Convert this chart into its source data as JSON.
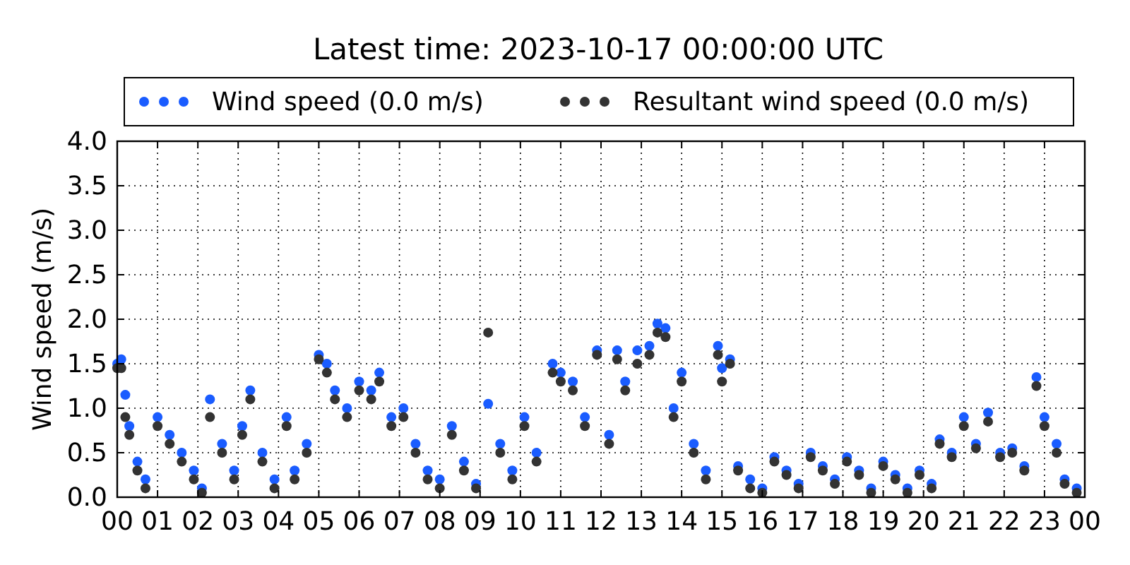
{
  "chart_data": {
    "type": "scatter",
    "title": "Latest time: 2023-10-17 00:00:00 UTC",
    "ylabel": "Wind speed (m/s)",
    "xlim": [
      0,
      24
    ],
    "xticks": [
      {
        "value": 0,
        "label": "00"
      },
      {
        "value": 1,
        "label": "01"
      },
      {
        "value": 2,
        "label": "02"
      },
      {
        "value": 3,
        "label": "03"
      },
      {
        "value": 4,
        "label": "04"
      },
      {
        "value": 5,
        "label": "05"
      },
      {
        "value": 6,
        "label": "06"
      },
      {
        "value": 7,
        "label": "07"
      },
      {
        "value": 8,
        "label": "08"
      },
      {
        "value": 9,
        "label": "09"
      },
      {
        "value": 10,
        "label": "10"
      },
      {
        "value": 11,
        "label": "11"
      },
      {
        "value": 12,
        "label": "12"
      },
      {
        "value": 13,
        "label": "13"
      },
      {
        "value": 14,
        "label": "14"
      },
      {
        "value": 15,
        "label": "15"
      },
      {
        "value": 16,
        "label": "16"
      },
      {
        "value": 17,
        "label": "17"
      },
      {
        "value": 18,
        "label": "18"
      },
      {
        "value": 19,
        "label": "19"
      },
      {
        "value": 20,
        "label": "20"
      },
      {
        "value": 21,
        "label": "21"
      },
      {
        "value": 22,
        "label": "22"
      },
      {
        "value": 23,
        "label": "23"
      },
      {
        "value": 24,
        "label": "00"
      }
    ],
    "ylim": [
      0,
      4
    ],
    "yticks": [
      {
        "value": 0,
        "label": "0.0"
      },
      {
        "value": 0.5,
        "label": "0.5"
      },
      {
        "value": 1,
        "label": "1.0"
      },
      {
        "value": 1.5,
        "label": "1.5"
      },
      {
        "value": 2,
        "label": "2.0"
      },
      {
        "value": 2.5,
        "label": "2.5"
      },
      {
        "value": 3,
        "label": "3.0"
      },
      {
        "value": 3.5,
        "label": "3.5"
      },
      {
        "value": 4,
        "label": "4.0"
      }
    ],
    "grid": true,
    "legend": "top",
    "marker": "circle",
    "series": [
      {
        "name": "Wind speed (0.0 m/s)",
        "color": "#1a5cff",
        "x": [
          0.0,
          0.1,
          0.2,
          0.3,
          0.5,
          0.7,
          1.0,
          1.3,
          1.6,
          1.9,
          2.1,
          2.3,
          2.6,
          2.9,
          3.1,
          3.3,
          3.6,
          3.9,
          4.2,
          4.4,
          4.7,
          5.0,
          5.2,
          5.4,
          5.7,
          6.0,
          6.3,
          6.5,
          6.8,
          7.1,
          7.4,
          7.7,
          8.0,
          8.3,
          8.6,
          8.9,
          9.2,
          9.5,
          9.8,
          10.1,
          10.4,
          10.8,
          11.0,
          11.3,
          11.6,
          11.9,
          12.2,
          12.4,
          12.6,
          12.9,
          13.2,
          13.4,
          13.6,
          13.8,
          14.0,
          14.3,
          14.6,
          14.9,
          15.0,
          15.2,
          15.4,
          15.7,
          16.0,
          16.3,
          16.6,
          16.9,
          17.2,
          17.5,
          17.8,
          18.1,
          18.4,
          18.7,
          19.0,
          19.3,
          19.6,
          19.9,
          20.2,
          20.4,
          20.7,
          21.0,
          21.3,
          21.6,
          21.9,
          22.2,
          22.5,
          22.8,
          23.0,
          23.3,
          23.5,
          23.8
        ],
        "values": [
          1.5,
          1.55,
          1.15,
          0.8,
          0.4,
          0.2,
          0.9,
          0.7,
          0.5,
          0.3,
          0.1,
          1.1,
          0.6,
          0.3,
          0.8,
          1.2,
          0.5,
          0.2,
          0.9,
          0.3,
          0.6,
          1.6,
          1.5,
          1.2,
          1.0,
          1.3,
          1.2,
          1.4,
          0.9,
          1.0,
          0.6,
          0.3,
          0.2,
          0.8,
          0.4,
          0.15,
          1.05,
          0.6,
          0.3,
          0.9,
          0.5,
          1.5,
          1.4,
          1.3,
          0.9,
          1.65,
          0.7,
          1.65,
          1.3,
          1.65,
          1.7,
          1.95,
          1.9,
          1.0,
          1.4,
          0.6,
          0.3,
          1.7,
          1.45,
          1.55,
          0.35,
          0.2,
          0.1,
          0.45,
          0.3,
          0.15,
          0.5,
          0.35,
          0.2,
          0.45,
          0.3,
          0.1,
          0.4,
          0.25,
          0.1,
          0.3,
          0.15,
          0.65,
          0.5,
          0.9,
          0.6,
          0.95,
          0.5,
          0.55,
          0.35,
          1.35,
          0.9,
          0.6,
          0.2,
          0.1
        ]
      },
      {
        "name": "Resultant wind speed (0.0 m/s)",
        "color": "#333333",
        "x": [
          0.0,
          0.1,
          0.2,
          0.3,
          0.5,
          0.7,
          1.0,
          1.3,
          1.6,
          1.9,
          2.1,
          2.3,
          2.6,
          2.9,
          3.1,
          3.3,
          3.6,
          3.9,
          4.2,
          4.4,
          4.7,
          5.0,
          5.2,
          5.4,
          5.7,
          6.0,
          6.3,
          6.5,
          6.8,
          7.1,
          7.4,
          7.7,
          8.0,
          8.3,
          8.6,
          8.9,
          9.2,
          9.5,
          9.8,
          10.1,
          10.4,
          10.8,
          11.0,
          11.3,
          11.6,
          11.9,
          12.2,
          12.4,
          12.6,
          12.9,
          13.2,
          13.4,
          13.6,
          13.8,
          14.0,
          14.3,
          14.6,
          14.9,
          15.0,
          15.2,
          15.4,
          15.7,
          16.0,
          16.3,
          16.6,
          16.9,
          17.2,
          17.5,
          17.8,
          18.1,
          18.4,
          18.7,
          19.0,
          19.3,
          19.6,
          19.9,
          20.2,
          20.4,
          20.7,
          21.0,
          21.3,
          21.6,
          21.9,
          22.2,
          22.5,
          22.8,
          23.0,
          23.3,
          23.5,
          23.8
        ],
        "values": [
          1.45,
          1.45,
          0.9,
          0.7,
          0.3,
          0.1,
          0.8,
          0.6,
          0.4,
          0.2,
          0.05,
          0.9,
          0.5,
          0.2,
          0.7,
          1.1,
          0.4,
          0.1,
          0.8,
          0.2,
          0.5,
          1.55,
          1.4,
          1.1,
          0.9,
          1.2,
          1.1,
          1.3,
          0.8,
          0.9,
          0.5,
          0.2,
          0.1,
          0.7,
          0.3,
          0.1,
          1.85,
          0.5,
          0.2,
          0.8,
          0.4,
          1.4,
          1.3,
          1.2,
          0.8,
          1.6,
          0.6,
          1.55,
          1.2,
          1.5,
          1.6,
          1.85,
          1.8,
          0.9,
          1.3,
          0.5,
          0.2,
          1.6,
          1.3,
          1.5,
          0.3,
          0.1,
          0.05,
          0.4,
          0.25,
          0.1,
          0.45,
          0.3,
          0.15,
          0.4,
          0.25,
          0.05,
          0.35,
          0.2,
          0.05,
          0.25,
          0.1,
          0.6,
          0.45,
          0.8,
          0.55,
          0.85,
          0.45,
          0.5,
          0.3,
          1.25,
          0.8,
          0.5,
          0.15,
          0.05
        ]
      }
    ]
  }
}
